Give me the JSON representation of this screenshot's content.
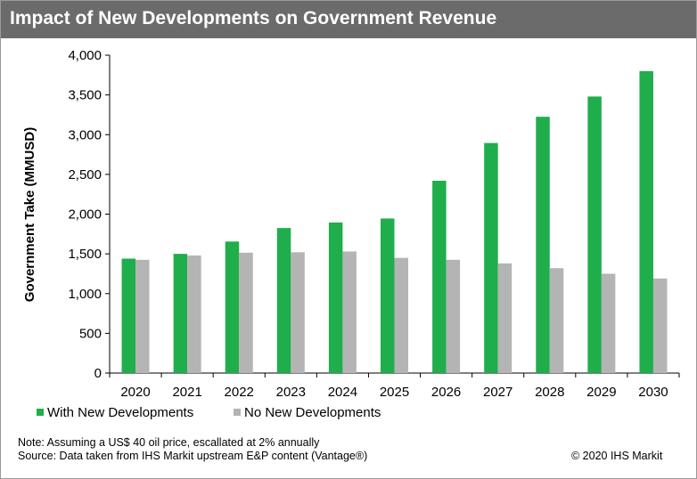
{
  "header": {
    "title": "Impact of New Developments on Government Revenue"
  },
  "footer": {
    "note": "Note: Assuming a US$ 40 oil price, escallated at 2% annually",
    "source": "Source: Data taken from IHS Markit upstream E&P content (Vantage®)",
    "copyright": "© 2020 IHS Markit"
  },
  "colors": {
    "title_bar": "#6b6b6b",
    "with_new": "#1fae4b",
    "no_new": "#b4b4b4",
    "axis": "#000000"
  },
  "chart_data": {
    "type": "bar",
    "categories": [
      "2020",
      "2021",
      "2022",
      "2023",
      "2024",
      "2025",
      "2026",
      "2027",
      "2028",
      "2029",
      "2030"
    ],
    "series": [
      {
        "name": "With New Developments",
        "color": "#1fae4b",
        "values": [
          1440,
          1500,
          1655,
          1825,
          1895,
          1945,
          2420,
          2895,
          3225,
          3480,
          3800
        ]
      },
      {
        "name": "No New Developments",
        "color": "#b4b4b4",
        "values": [
          1425,
          1480,
          1515,
          1520,
          1530,
          1450,
          1425,
          1380,
          1320,
          1250,
          1190
        ]
      }
    ],
    "title": "Impact of New Developments on Government Revenue",
    "ylabel": "Government Take (MMUSD)",
    "xlabel": "",
    "ylim": [
      0,
      4000
    ],
    "yticks": [
      0,
      500,
      1000,
      1500,
      2000,
      2500,
      3000,
      3500,
      4000
    ],
    "ytick_labels": [
      "0",
      "500",
      "1,000",
      "1,500",
      "2,000",
      "2,500",
      "3,000",
      "3,500",
      "4,000"
    ],
    "grid": false,
    "legend": "bottom-left"
  }
}
